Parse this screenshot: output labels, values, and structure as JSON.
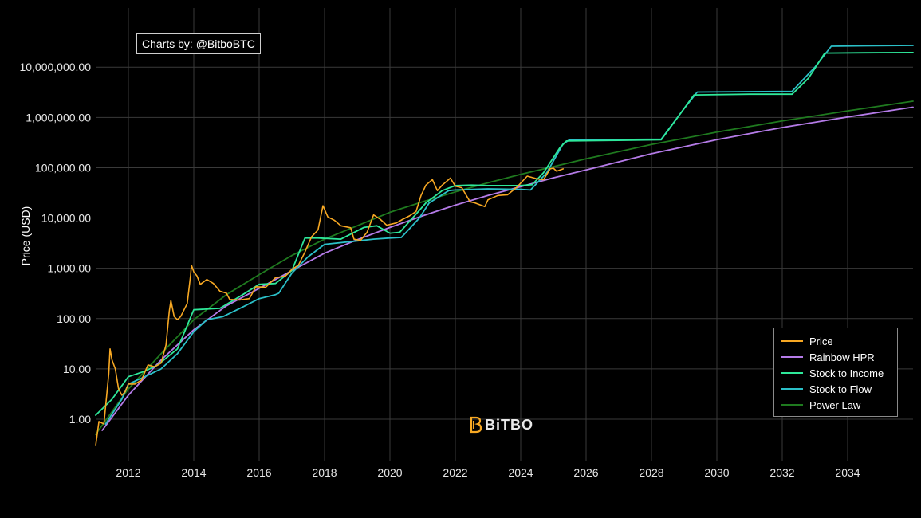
{
  "credit": "Charts by: @BitboBTC",
  "brand": {
    "name": "BiTBO",
    "colors": {
      "icon": "#f7a823",
      "text": "#e8e8e8"
    }
  },
  "colors": {
    "background": "#000000",
    "grid": "#3a3a3a"
  },
  "chart_data": {
    "type": "line",
    "title": "",
    "xlabel": "",
    "ylabel": "Price (USD)",
    "y_scale": "log",
    "xlim": [
      2011.0,
      2036.0
    ],
    "ylim": [
      0.15,
      150000000
    ],
    "grid": true,
    "legend_position": "bottom-right",
    "x_ticks": [
      "2012",
      "2014",
      "2016",
      "2018",
      "2020",
      "2022",
      "2024",
      "2026",
      "2028",
      "2030",
      "2032",
      "2034"
    ],
    "y_ticks": [
      "1.00",
      "10.00",
      "100.00",
      "1,000.00",
      "10,000.00",
      "100,000.00",
      "1,000,000.00",
      "10,000,000.00"
    ],
    "series": [
      {
        "name": "Price",
        "color": "#f7a823",
        "x": [
          2011.0,
          2011.1,
          2011.25,
          2011.4,
          2011.44,
          2011.5,
          2011.6,
          2011.7,
          2011.8,
          2011.9,
          2012.0,
          2012.2,
          2012.4,
          2012.6,
          2012.8,
          2013.0,
          2013.15,
          2013.25,
          2013.3,
          2013.4,
          2013.5,
          2013.6,
          2013.8,
          2013.9,
          2013.93,
          2014.0,
          2014.1,
          2014.2,
          2014.4,
          2014.6,
          2014.8,
          2015.0,
          2015.1,
          2015.4,
          2015.7,
          2015.9,
          2016.2,
          2016.5,
          2016.8,
          2017.0,
          2017.2,
          2017.4,
          2017.6,
          2017.8,
          2017.95,
          2018.1,
          2018.3,
          2018.5,
          2018.8,
          2018.9,
          2019.1,
          2019.3,
          2019.5,
          2019.7,
          2019.9,
          2020.2,
          2020.4,
          2020.6,
          2020.8,
          2020.95,
          2021.1,
          2021.3,
          2021.45,
          2021.6,
          2021.85,
          2022.0,
          2022.2,
          2022.45,
          2022.6,
          2022.9,
          2023.0,
          2023.3,
          2023.6,
          2023.9,
          2024.2,
          2024.5,
          2024.7,
          2024.9,
          2025.0,
          2025.1,
          2025.3
        ],
        "values": [
          0.3,
          0.9,
          0.8,
          8,
          25,
          15,
          10,
          4,
          3,
          3.5,
          5,
          5,
          6,
          12,
          11,
          13,
          30,
          140,
          230,
          110,
          95,
          110,
          200,
          700,
          1150,
          850,
          700,
          480,
          600,
          500,
          350,
          320,
          240,
          235,
          250,
          430,
          420,
          650,
          700,
          950,
          1150,
          2100,
          4200,
          5800,
          17500,
          10500,
          9000,
          7000,
          6400,
          3800,
          3600,
          5200,
          11500,
          9500,
          7200,
          8000,
          9500,
          11000,
          13500,
          28000,
          45000,
          58000,
          35000,
          45000,
          62000,
          43000,
          40000,
          21000,
          20000,
          16800,
          23000,
          28000,
          29000,
          42000,
          68000,
          60000,
          58000,
          95000,
          98000,
          85000,
          95000
        ]
      },
      {
        "name": "Rainbow HPR",
        "color": "#b57be8",
        "x": [
          2011.2,
          2012.0,
          2013.0,
          2014.0,
          2015.0,
          2016.0,
          2017.0,
          2018.0,
          2019.0,
          2020.0,
          2021.0,
          2022.0,
          2023.0,
          2024.0,
          2025.0,
          2026.0,
          2028.0,
          2030.0,
          2032.0,
          2034.0,
          2036.0
        ],
        "values": [
          0.6,
          3,
          15,
          60,
          180,
          400,
          900,
          2000,
          3700,
          6500,
          11000,
          18000,
          28000,
          42000,
          63000,
          90000,
          190000,
          360000,
          630000,
          1020000,
          1600000
        ]
      },
      {
        "name": "Stock to Income",
        "color": "#2ee89a",
        "x": [
          2011.0,
          2011.5,
          2012.0,
          2012.5,
          2012.9,
          2013.5,
          2014.0,
          2014.8,
          2015.5,
          2016.0,
          2016.5,
          2017.0,
          2017.4,
          2017.8,
          2018.5,
          2019.2,
          2019.6,
          2020.0,
          2020.3,
          2020.8,
          2021.1,
          2021.6,
          2022.0,
          2022.5,
          2023.0,
          2023.5,
          2024.0,
          2024.35,
          2024.7,
          2025.2,
          2025.4,
          2027.0,
          2028.3,
          2028.8,
          2029.3,
          2031.0,
          2032.3,
          2032.8,
          2033.3,
          2034.5,
          2036.0
        ],
        "values": [
          1.2,
          2.5,
          7,
          9,
          12,
          25,
          150,
          160,
          300,
          480,
          500,
          900,
          4000,
          4000,
          3800,
          6500,
          7000,
          5000,
          5200,
          12000,
          20000,
          35000,
          44000,
          45000,
          44000,
          44000,
          44000,
          46000,
          80000,
          250000,
          340000,
          350000,
          360000,
          1000000,
          2800000,
          2900000,
          2900000,
          6000000,
          19000000,
          19300000,
          19500000
        ]
      },
      {
        "name": "Stock to Flow",
        "color": "#2bc0c8",
        "x": [
          2011.3,
          2011.8,
          2012.0,
          2012.5,
          2013.0,
          2013.5,
          2014.0,
          2014.4,
          2014.9,
          2015.5,
          2016.0,
          2016.5,
          2016.6,
          2017.0,
          2017.5,
          2018.0,
          2019.0,
          2019.5,
          2020.0,
          2020.35,
          2020.9,
          2021.2,
          2021.8,
          2022.0,
          2023.0,
          2024.0,
          2024.3,
          2024.8,
          2025.3,
          2025.5,
          2027.0,
          2028.3,
          2029.0,
          2029.4,
          2031.0,
          2032.3,
          2033.0,
          2033.5,
          2034.5,
          2036.0
        ],
        "values": [
          0.8,
          2.5,
          5,
          7,
          10,
          20,
          55,
          95,
          110,
          170,
          250,
          300,
          320,
          800,
          1700,
          3000,
          3500,
          3800,
          4000,
          4100,
          10000,
          20000,
          35000,
          36000,
          38000,
          37000,
          36000,
          80000,
          300000,
          360000,
          365000,
          370000,
          1500000,
          3200000,
          3250000,
          3300000,
          10000000,
          26000000,
          26500000,
          27000000
        ]
      },
      {
        "name": "Power Law",
        "color": "#1f7a1f",
        "x": [
          2011.0,
          2012.0,
          2013.0,
          2014.0,
          2015.0,
          2016.0,
          2017.0,
          2018.0,
          2019.0,
          2020.0,
          2021.0,
          2022.0,
          2023.0,
          2024.0,
          2025.0,
          2026.0,
          2028.0,
          2030.0,
          2032.0,
          2034.0,
          2036.0
        ],
        "values": [
          0.5,
          4,
          20,
          95,
          300,
          750,
          1800,
          3800,
          7000,
          13000,
          21000,
          33000,
          50000,
          74000,
          105000,
          150000,
          290000,
          510000,
          850000,
          1350000,
          2100000
        ]
      }
    ]
  }
}
